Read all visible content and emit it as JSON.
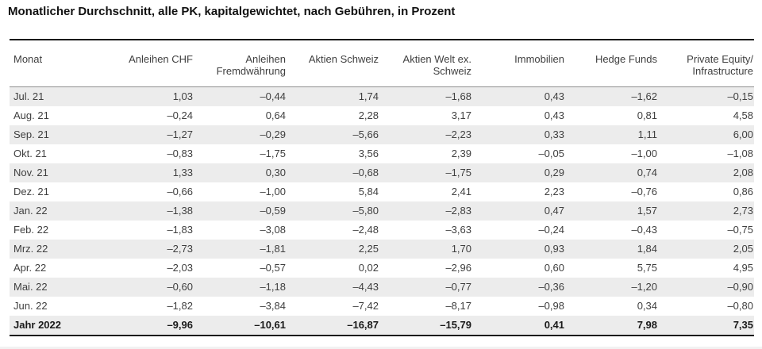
{
  "page_title": "Monatlicher Durchschnitt, alle PK, kapitalgewichtet, nach Gebühren, in Prozent",
  "columns": [
    "Monat",
    "Anleihen CHF",
    "Anleihen Fremdwährung",
    "Aktien Schweiz",
    "Aktien Welt ex. Schweiz",
    "Immobilien",
    "Hedge Funds",
    "Private Equity/ Infrastructure"
  ],
  "rows": [
    {
      "cells": [
        "Jul. 21",
        "1,03",
        "–0,44",
        "1,74",
        "–1,68",
        "0,43",
        "–1,62",
        "–0,15"
      ]
    },
    {
      "cells": [
        "Aug. 21",
        "–0,24",
        "0,64",
        "2,28",
        "3,17",
        "0,43",
        "0,81",
        "4,58"
      ]
    },
    {
      "cells": [
        "Sep. 21",
        "–1,27",
        "–0,29",
        "–5,66",
        "–2,23",
        "0,33",
        "1,11",
        "6,00"
      ]
    },
    {
      "cells": [
        "Okt. 21",
        "–0,83",
        "–1,75",
        "3,56",
        "2,39",
        "–0,05",
        "–1,00",
        "–1,08"
      ]
    },
    {
      "cells": [
        "Nov. 21",
        "1,33",
        "0,30",
        "–0,68",
        "–1,75",
        "0,29",
        "0,74",
        "2,08"
      ]
    },
    {
      "cells": [
        "Dez. 21",
        "–0,66",
        "–1,00",
        "5,84",
        "2,41",
        "2,23",
        "–0,76",
        "0,86"
      ]
    },
    {
      "cells": [
        "Jan. 22",
        "–1,38",
        "–0,59",
        "–5,80",
        "–2,83",
        "0,47",
        "1,57",
        "2,73"
      ]
    },
    {
      "cells": [
        "Feb. 22",
        "–1,83",
        "–3,08",
        "–2,48",
        "–3,63",
        "–0,24",
        "–0,43",
        "–0,75"
      ]
    },
    {
      "cells": [
        "Mrz. 22",
        "–2,73",
        "–1,81",
        "2,25",
        "1,70",
        "0,93",
        "1,84",
        "2,05"
      ]
    },
    {
      "cells": [
        "Apr. 22",
        "–2,03",
        "–0,57",
        "0,02",
        "–2,96",
        "0,60",
        "5,75",
        "4,95"
      ]
    },
    {
      "cells": [
        "Mai. 22",
        "–0,60",
        "–1,18",
        "–4,43",
        "–0,77",
        "–0,36",
        "–1,20",
        "–0,90"
      ]
    },
    {
      "cells": [
        "Jun. 22",
        "–1,82",
        "–3,84",
        "–7,42",
        "–8,17",
        "–0,98",
        "0,34",
        "–0,80"
      ]
    }
  ],
  "total": {
    "cells": [
      "Jahr 2022",
      "–9,96",
      "–10,61",
      "–16,87",
      "–15,79",
      "0,41",
      "7,98",
      "7,35"
    ]
  },
  "colors": {
    "zebra_stripe": "#ececec",
    "rule_dark": "#1a1a1a",
    "rule_gray": "#8f8f8f",
    "body_text": "#3f3f3f",
    "title_text": "#111111"
  }
}
